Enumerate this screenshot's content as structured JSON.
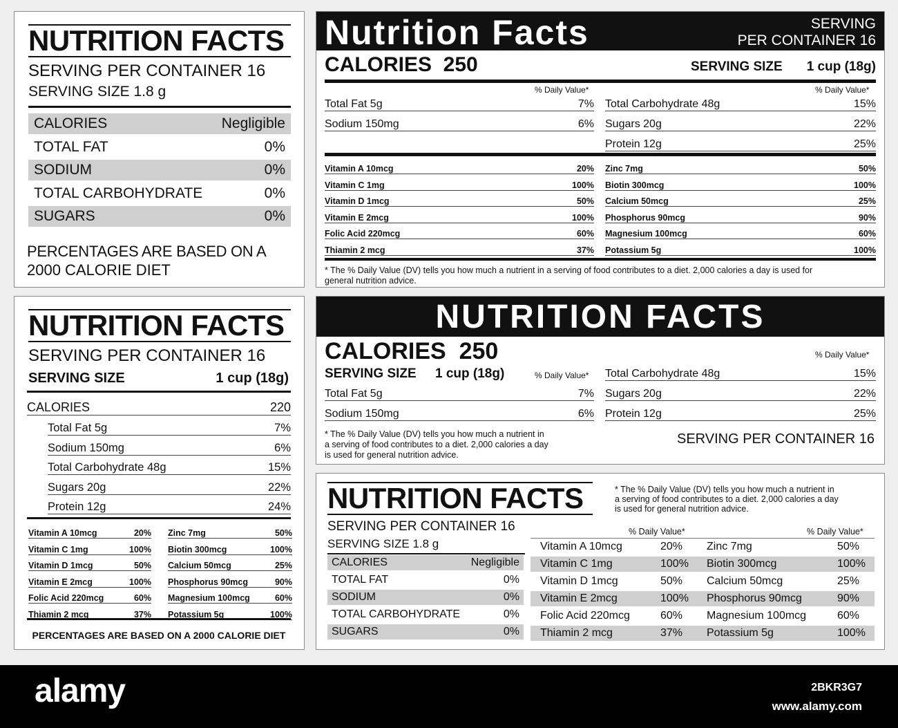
{
  "p1": {
    "title": "NUTRITION FACTS",
    "servings": "SERVING PER CONTAINER 16",
    "size": "SERVING SIZE 1.8 g",
    "rows": [
      {
        "label": "CALORIES",
        "value": "Negligible"
      },
      {
        "label": "TOTAL FAT",
        "value": "0%"
      },
      {
        "label": "SODIUM",
        "value": "0%"
      },
      {
        "label": "TOTAL CARBOHYDRATE",
        "value": "0%"
      },
      {
        "label": "SUGARS",
        "value": "0%"
      }
    ],
    "footer1": "PERCENTAGES ARE BASED ON A",
    "footer2": "2000 CALORIE DIET"
  },
  "p2": {
    "title": "Nutrition Facts",
    "serving1": "SERVING",
    "serving2": "PER CONTAINER 16",
    "calories": "CALORIES  250",
    "size_label": "SERVING SIZE",
    "size_value": "1 cup (18g)",
    "dv": "% Daily Value*",
    "left_rows": [
      {
        "label": "Total Fat 5g",
        "value": "7%"
      },
      {
        "label": "Sodium 150mg",
        "value": "6%"
      }
    ],
    "right_rows": [
      {
        "label": "Total Carbohydrate 48g",
        "value": "15%"
      },
      {
        "label": "Sugars 20g",
        "value": "22%"
      },
      {
        "label": "Protein 12g",
        "value": "25%"
      }
    ],
    "vit_left": [
      {
        "label": "Vitamin A 10mcg",
        "value": "20%"
      },
      {
        "label": "Vitamin C 1mg",
        "value": "100%"
      },
      {
        "label": "Vitamin D 1mcg",
        "value": "50%"
      },
      {
        "label": "Vitamin E 2mcg",
        "value": "100%"
      },
      {
        "label": "Folic Acid 220mcg",
        "value": "60%"
      },
      {
        "label": "Thiamin 2 mcg",
        "value": "37%"
      }
    ],
    "vit_right": [
      {
        "label": "Zinc 7mg",
        "value": "50%"
      },
      {
        "label": "Biotin 300mcg",
        "value": "100%"
      },
      {
        "label": "Calcium 50mcg",
        "value": "25%"
      },
      {
        "label": "Phosphorus 90mcg",
        "value": "90%"
      },
      {
        "label": "Magnesium 100mcg",
        "value": "60%"
      },
      {
        "label": "Potassium 5g",
        "value": "100%"
      }
    ],
    "note1": "* The % Daily Value (DV) tells you how much a nutrient in a serving of food contributes to a diet. 2,000 calories a day is used for",
    "note2": "general nutrition advice."
  },
  "p3": {
    "title": "NUTRITION FACTS",
    "servings": "SERVING PER CONTAINER 16",
    "size_label": "SERVING SIZE",
    "size_value": "1 cup (18g)",
    "calories_label": "CALORIES",
    "calories_value": "220",
    "rows": [
      {
        "label": "Total Fat 5g",
        "value": "7%"
      },
      {
        "label": "Sodium 150mg",
        "value": "6%"
      },
      {
        "label": "Total Carbohydrate 48g",
        "value": "15%"
      },
      {
        "label": "Sugars 20g",
        "value": "22%"
      },
      {
        "label": "Protein 12g",
        "value": "24%"
      }
    ],
    "vit_left": [
      {
        "label": "Vitamin A 10mcg",
        "value": "20%"
      },
      {
        "label": "Vitamin C 1mg",
        "value": "100%"
      },
      {
        "label": "Vitamin D 1mcg",
        "value": "50%"
      },
      {
        "label": "Vitamin E 2mcg",
        "value": "100%"
      },
      {
        "label": "Folic Acid 220mcg",
        "value": "60%"
      },
      {
        "label": "Thiamin 2 mcg",
        "value": "37%"
      }
    ],
    "vit_right": [
      {
        "label": "Zinc 7mg",
        "value": "50%"
      },
      {
        "label": "Biotin 300mcg",
        "value": "100%"
      },
      {
        "label": "Calcium 50mcg",
        "value": "25%"
      },
      {
        "label": "Phosphorus 90mcg",
        "value": "90%"
      },
      {
        "label": "Magnesium 100mcg",
        "value": "60%"
      },
      {
        "label": "Potassium 5g",
        "value": "100%"
      }
    ],
    "footer": "PERCENTAGES ARE BASED ON A 2000 CALORIE DIET"
  },
  "p4": {
    "title": "NUTRITION FACTS",
    "calories": "CALORIES  250",
    "size_label": "SERVING SIZE",
    "size_value": "1 cup (18g)",
    "dv": "% Daily Value*",
    "left_rows": [
      {
        "label": "Total Fat 5g",
        "value": "7%"
      },
      {
        "label": "Sodium 150mg",
        "value": "6%"
      }
    ],
    "right_rows": [
      {
        "label": "Total Carbohydrate 48g",
        "value": "15%"
      },
      {
        "label": "Sugars 20g",
        "value": "22%"
      },
      {
        "label": "Protein 12g",
        "value": "25%"
      }
    ],
    "note1": "* The % Daily Value (DV) tells you how much a nutrient in",
    "note2": "a serving of food contributes to a diet. 2,000 calories a day",
    "note3": "is used for general nutrition advice.",
    "servings": "SERVING PER CONTAINER 16"
  },
  "p5": {
    "title": "NUTRITION FACTS",
    "servings": "SERVING PER CONTAINER 16",
    "size": "SERVING SIZE 1.8 g",
    "note1": "* The % Daily Value (DV) tells you how much a nutrient in",
    "note2": "a serving of food contributes to a diet. 2,000 calories a day",
    "note3": "is used for general nutrition advice.",
    "dv": "% Daily Value*",
    "rows": [
      {
        "label": "CALORIES",
        "value": "Negligible"
      },
      {
        "label": "TOTAL FAT",
        "value": "0%"
      },
      {
        "label": "SODIUM",
        "value": "0%"
      },
      {
        "label": "TOTAL CARBOHYDRATE",
        "value": "0%"
      },
      {
        "label": "SUGARS",
        "value": "0%"
      }
    ],
    "vit_left": [
      {
        "label": "Vitamin A 10mcg",
        "value": "20%"
      },
      {
        "label": "Vitamin C 1mg",
        "value": "100%"
      },
      {
        "label": "Vitamin D 1mcg",
        "value": "50%"
      },
      {
        "label": "Vitamin E 2mcg",
        "value": "100%"
      },
      {
        "label": "Folic Acid 220mcg",
        "value": "60%"
      },
      {
        "label": "Thiamin 2 mcg",
        "value": "37%"
      }
    ],
    "vit_right": [
      {
        "label": "Zinc 7mg",
        "value": "50%"
      },
      {
        "label": "Biotin 300mcg",
        "value": "100%"
      },
      {
        "label": "Calcium 50mcg",
        "value": "25%"
      },
      {
        "label": "Phosphorus 90mcg",
        "value": "90%"
      },
      {
        "label": "Magnesium 100mcg",
        "value": "60%"
      },
      {
        "label": "Potassium 5g",
        "value": "100%"
      }
    ]
  },
  "footer": {
    "logo": "alamy",
    "image_id": "2BKR3G7",
    "url": "www.alamy.com"
  }
}
